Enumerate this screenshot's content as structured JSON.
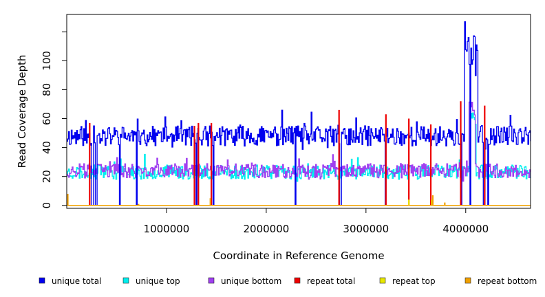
{
  "chart_data": {
    "type": "line",
    "xlabel": "Coordinate in Reference Genome",
    "ylabel": "Read Coverage Depth",
    "xlim": [
      0,
      4650000
    ],
    "ylim": [
      -2,
      132
    ],
    "x_ticks": [
      {
        "value": 1000000,
        "label": "1000000"
      },
      {
        "value": 2000000,
        "label": "2000000"
      },
      {
        "value": 3000000,
        "label": "3000000"
      },
      {
        "value": 4000000,
        "label": "4000000"
      }
    ],
    "y_ticks": [
      {
        "value": 0,
        "label": "0"
      },
      {
        "value": 20,
        "label": "20"
      },
      {
        "value": 40,
        "label": "40"
      },
      {
        "value": 60,
        "label": "60"
      },
      {
        "value": 80,
        "label": "80"
      },
      {
        "value": 100,
        "label": "100"
      },
      {
        "value": 120,
        "label": ""
      }
    ],
    "series": [
      {
        "name": "unique total",
        "color": "#0000ee",
        "baseline": 48,
        "amplitude": 7,
        "noise_seed": 11,
        "spikes": [
          {
            "x": 4050000,
            "width": 140000,
            "values": [
              125,
              105,
              115,
              95,
              110,
              100,
              118,
              92,
              108
            ]
          }
        ],
        "dropouts": [
          255000,
          290000,
          525000,
          695000,
          1295000,
          1470000,
          2290000,
          2740000,
          3190000,
          3950000,
          4040000,
          4180000,
          4220000
        ]
      },
      {
        "name": "unique top",
        "color": "#00eeee",
        "baseline": 23,
        "amplitude": 5,
        "noise_seed": 23,
        "spikes": [
          {
            "x": 4070000,
            "width": 60000,
            "values": [
              62,
              58
            ]
          }
        ],
        "dropouts": []
      },
      {
        "name": "unique bottom",
        "color": "#a040f0",
        "baseline": 24,
        "amplitude": 5,
        "noise_seed": 37,
        "spikes": [
          {
            "x": 4060000,
            "width": 60000,
            "values": [
              70,
              64
            ]
          }
        ],
        "dropouts": []
      },
      {
        "name": "repeat total",
        "color": "#ee0000",
        "baseline": 0,
        "amplitude": 0,
        "noise_seed": 0,
        "peaks": [
          [
            230000,
            57
          ],
          [
            1280000,
            55
          ],
          [
            1320000,
            57
          ],
          [
            1450000,
            57
          ],
          [
            2730000,
            66
          ],
          [
            3200000,
            63
          ],
          [
            3430000,
            60
          ],
          [
            3650000,
            56
          ],
          [
            3950000,
            72
          ],
          [
            4190000,
            69
          ]
        ]
      },
      {
        "name": "repeat top",
        "color": "#e8e800",
        "baseline": 0,
        "amplitude": 0,
        "noise_seed": 0,
        "peaks": [
          [
            10000,
            6
          ],
          [
            3430000,
            4
          ],
          [
            3660000,
            4
          ]
        ]
      },
      {
        "name": "repeat bottom",
        "color": "#f0a000",
        "baseline": 0,
        "amplitude": 0,
        "noise_seed": 0,
        "peaks": [
          [
            10000,
            8
          ],
          [
            720000,
            1
          ],
          [
            1440000,
            5
          ],
          [
            3670000,
            7
          ],
          [
            3790000,
            2
          ]
        ]
      }
    ]
  }
}
